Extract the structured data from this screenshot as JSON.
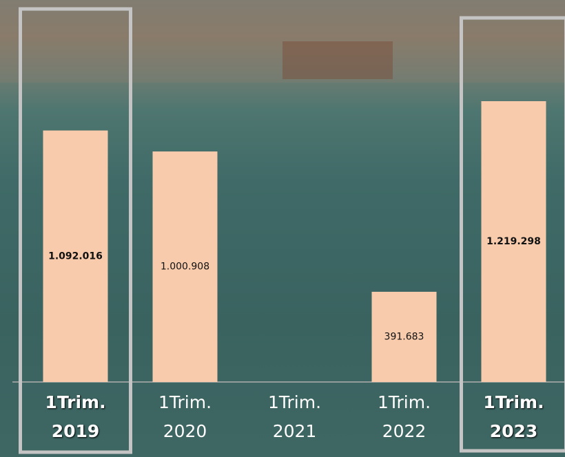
{
  "chart_data": {
    "type": "bar",
    "categories": [
      "1Trim.\n2019",
      "1Trim.\n2020",
      "1Trim.\n2021",
      "1Trim.\n2022",
      "1Trim.\n2023"
    ],
    "values": [
      1092016,
      1000908,
      null,
      391683,
      1219298
    ],
    "value_labels": [
      "1.092.016",
      "1.000.908",
      null,
      "391.683",
      "1.219.298"
    ],
    "color": "#f8cbad",
    "highlight": [
      true,
      false,
      false,
      false,
      true
    ]
  }
}
